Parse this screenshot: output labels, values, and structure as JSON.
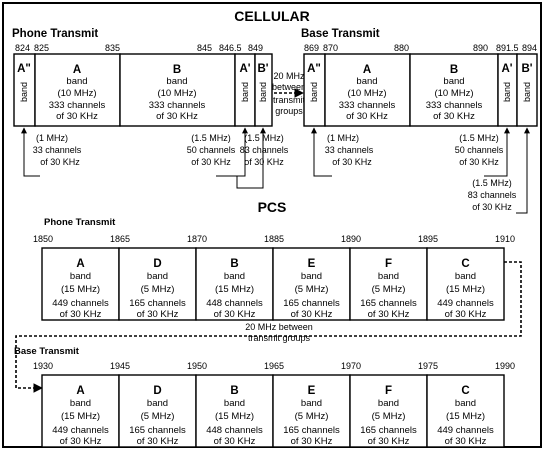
{
  "cellular": {
    "title": "CELLULAR",
    "phone_transmit": {
      "label": "Phone Transmit",
      "freqs": [
        "824",
        "825",
        "835",
        "845",
        "846.5",
        "849"
      ],
      "blocks": [
        {
          "letter": "A\"",
          "narrow": true,
          "band": "band"
        },
        {
          "letter": "A",
          "band": "band",
          "mhz": "(10 MHz)",
          "channels": "333 channels",
          "of": "of 30 KHz"
        },
        {
          "letter": "B",
          "band": "band",
          "mhz": "(10 MHz)",
          "channels": "333 channels",
          "of": "of 30 KHz"
        },
        {
          "letter": "A'",
          "narrow": true,
          "band": "band"
        },
        {
          "letter": "B'",
          "narrow": true,
          "band": "band"
        }
      ],
      "notes": [
        {
          "mhz": "(1 MHz)",
          "channels": "33 channels",
          "of": "of 30 KHz"
        },
        {
          "mhz": "(1.5 MHz)",
          "channels": "50 channels",
          "of": "of 30 KHz"
        },
        {
          "mhz": "(1.5 MHz)",
          "channels": "83 channels",
          "of": "of 30 KHz"
        }
      ]
    },
    "gap_note": [
      "20 MHz",
      "between",
      "transmit",
      "groups"
    ],
    "base_transmit": {
      "label": "Base Transmit",
      "freqs": [
        "869",
        "870",
        "880",
        "890",
        "891.5",
        "894"
      ],
      "blocks": [
        {
          "letter": "A\"",
          "narrow": true,
          "band": "band"
        },
        {
          "letter": "A",
          "band": "band",
          "mhz": "(10 MHz)",
          "channels": "333 channels",
          "of": "of 30 KHz"
        },
        {
          "letter": "B",
          "band": "band",
          "mhz": "(10 MHz)",
          "channels": "333 channels",
          "of": "of 30 KHz"
        },
        {
          "letter": "A'",
          "narrow": true,
          "band": "band"
        },
        {
          "letter": "B'",
          "narrow": true,
          "band": "band"
        }
      ],
      "notes": [
        {
          "mhz": "(1 MHz)",
          "channels": "33 channels",
          "of": "of 30 KHz"
        },
        {
          "mhz": "(1.5 MHz)",
          "channels": "50 channels",
          "of": "of 30 KHz"
        },
        {
          "mhz": "(1.5 MHz)",
          "channels": "83 channels",
          "of": "of 30 KHz"
        }
      ]
    }
  },
  "pcs": {
    "title": "PCS",
    "phone_transmit": {
      "label": "Phone Transmit",
      "freqs": [
        "1850",
        "1865",
        "1870",
        "1885",
        "1890",
        "1895",
        "1910"
      ],
      "blocks": [
        {
          "letter": "A",
          "band": "band",
          "mhz": "(15 MHz)",
          "channels": "449 channels",
          "of": "of 30 KHz"
        },
        {
          "letter": "D",
          "band": "band",
          "mhz": "(5 MHz)",
          "channels": "165 channels",
          "of": "of 30 KHz"
        },
        {
          "letter": "B",
          "band": "band",
          "mhz": "(15 MHz)",
          "channels": "448 channels",
          "of": "of 30 KHz"
        },
        {
          "letter": "E",
          "band": "band",
          "mhz": "(5 MHz)",
          "channels": "165 channels",
          "of": "of 30 KHz"
        },
        {
          "letter": "F",
          "band": "band",
          "mhz": "(5 MHz)",
          "channels": "165 channels",
          "of": "of 30 KHz"
        },
        {
          "letter": "C",
          "band": "band",
          "mhz": "(15 MHz)",
          "channels": "449 channels",
          "of": "of 30 KHz"
        }
      ]
    },
    "gap_note": [
      "20 MHz between",
      "transmit groups"
    ],
    "base_transmit": {
      "label": "Base Transmit",
      "freqs": [
        "1930",
        "1945",
        "1950",
        "1965",
        "1970",
        "1975",
        "1990"
      ],
      "blocks": [
        {
          "letter": "A",
          "band": "band",
          "mhz": "(15 MHz)",
          "channels": "449 channels",
          "of": "of 30 KHz"
        },
        {
          "letter": "D",
          "band": "band",
          "mhz": "(5 MHz)",
          "channels": "165 channels",
          "of": "of 30 KHz"
        },
        {
          "letter": "B",
          "band": "band",
          "mhz": "(15 MHz)",
          "channels": "448 channels",
          "of": "of 30 KHz"
        },
        {
          "letter": "E",
          "band": "band",
          "mhz": "(5 MHz)",
          "channels": "165 channels",
          "of": "of 30 KHz"
        },
        {
          "letter": "F",
          "band": "band",
          "mhz": "(5 MHz)",
          "channels": "165 channels",
          "of": "of 30 KHz"
        },
        {
          "letter": "C",
          "band": "band",
          "mhz": "(15 MHz)",
          "channels": "449 channels",
          "of": "of 30 KHz"
        }
      ]
    }
  }
}
